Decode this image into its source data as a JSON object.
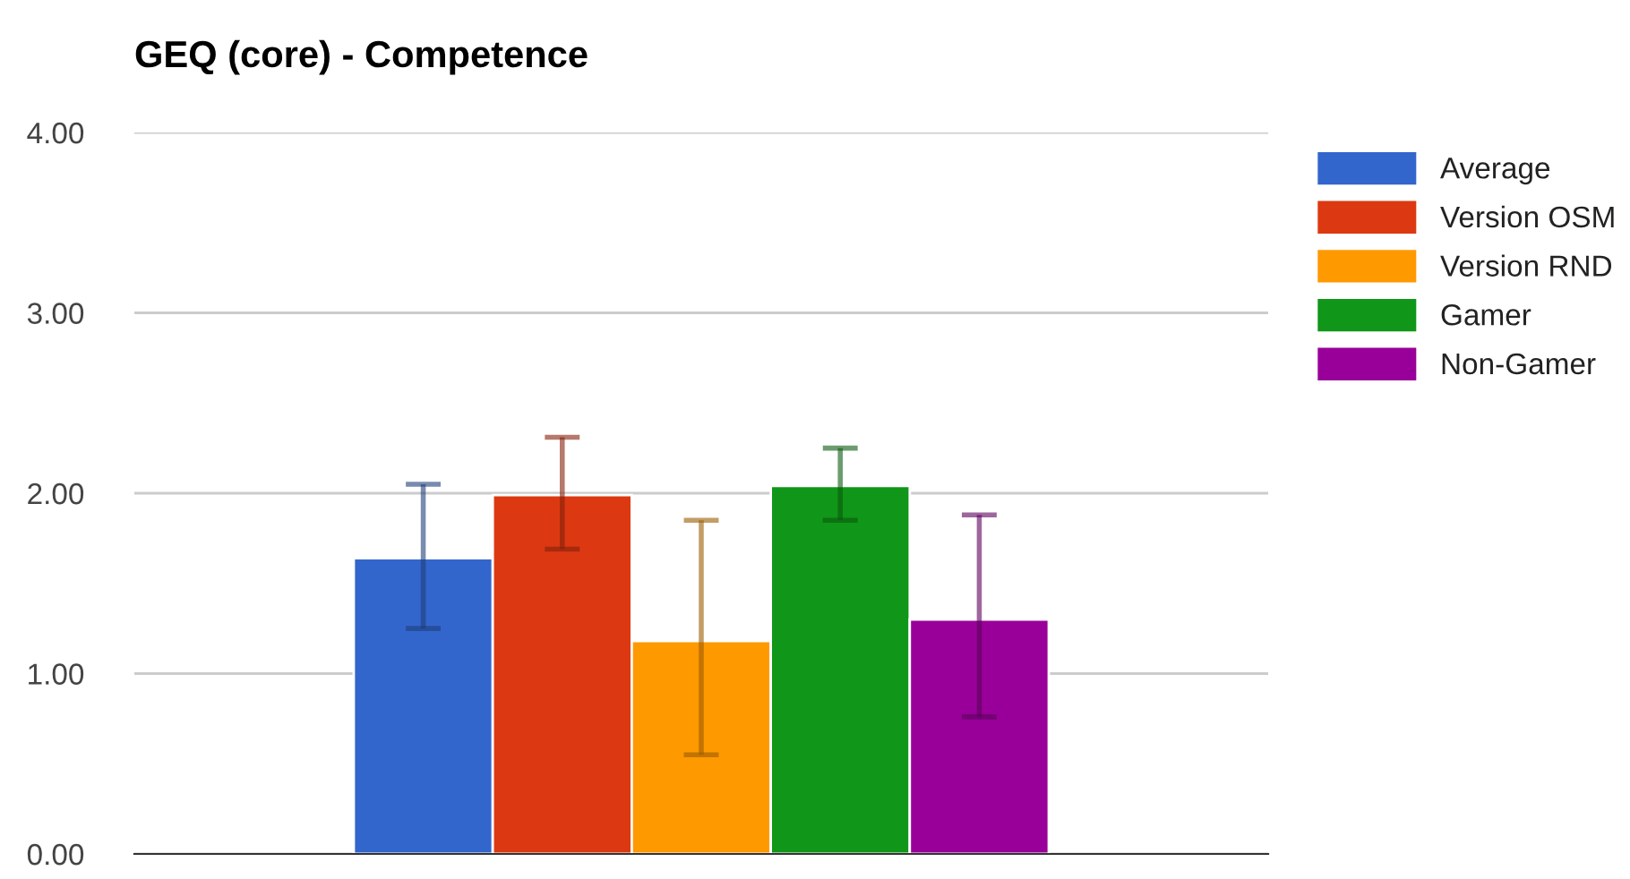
{
  "chart_data": {
    "type": "bar",
    "title": "GEQ (core) - Competence",
    "categories": [
      null
    ],
    "series": [
      {
        "name": "Average",
        "color": "#3366cc",
        "values": [
          1.64
        ],
        "errors": [
          [
            1.25,
            2.05
          ]
        ]
      },
      {
        "name": "Version OSM",
        "color": "#dc3912",
        "values": [
          1.99
        ],
        "errors": [
          [
            1.69,
            2.31
          ]
        ]
      },
      {
        "name": "Version RND",
        "color": "#ff9900",
        "values": [
          1.18
        ],
        "errors": [
          [
            0.55,
            1.85
          ]
        ]
      },
      {
        "name": "Gamer",
        "color": "#109618",
        "values": [
          2.04
        ],
        "errors": [
          [
            1.85,
            2.25
          ]
        ]
      },
      {
        "name": "Non-Gamer",
        "color": "#990099",
        "values": [
          1.3
        ],
        "errors": [
          [
            0.76,
            1.88
          ]
        ]
      }
    ],
    "ylim": [
      0,
      4
    ],
    "yticks": [
      {
        "value": 0,
        "label": "0.00"
      },
      {
        "value": 1,
        "label": "1.00"
      },
      {
        "value": 2,
        "label": "2.00"
      },
      {
        "value": 3,
        "label": "3.00"
      },
      {
        "value": 4,
        "label": "4.00"
      }
    ],
    "grid": "y",
    "legend": "top right"
  }
}
